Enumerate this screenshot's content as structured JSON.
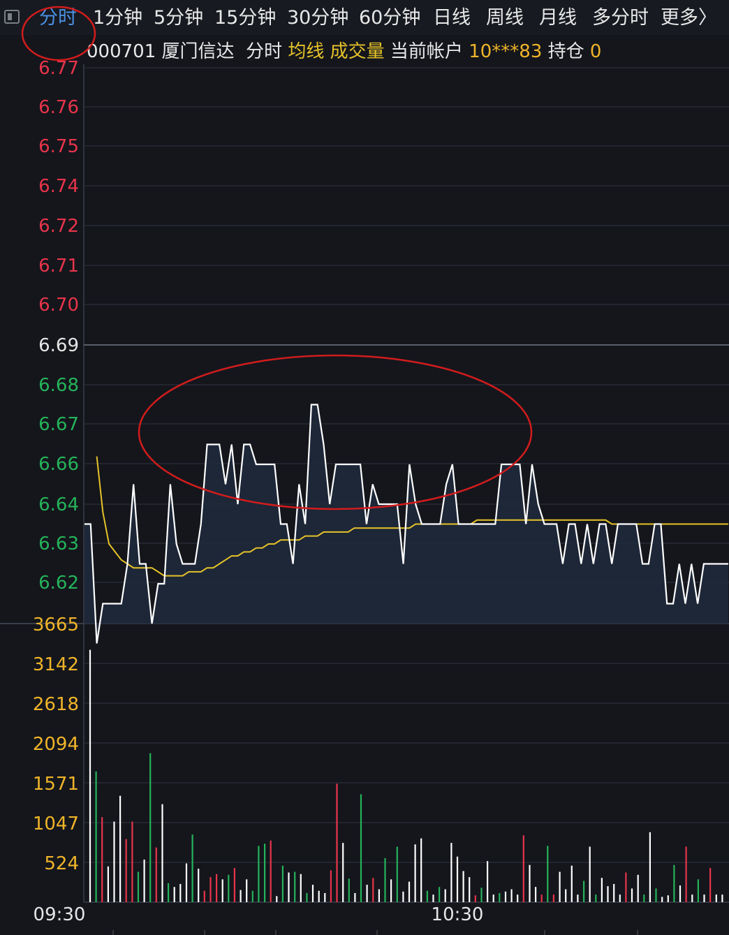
{
  "tabs": [
    {
      "label": "分时",
      "active": true
    },
    {
      "label": "1分钟"
    },
    {
      "label": "5分钟"
    },
    {
      "label": "15分钟"
    },
    {
      "label": "30分钟"
    },
    {
      "label": "60分钟"
    },
    {
      "label": "日线"
    },
    {
      "label": "周线"
    },
    {
      "label": "月线"
    },
    {
      "label": "多分时"
    },
    {
      "label": "更多〉"
    }
  ],
  "info": {
    "code_name": "000701 厦门信达",
    "mode": "分时",
    "avg_label": "均线",
    "volume_label": "成交量",
    "account_label": "当前帐户",
    "account": "10***83",
    "position_label": "持仓",
    "position": "0"
  },
  "colors": {
    "up": "#e8344a",
    "down": "#25b35a",
    "flat": "#ffffff",
    "avg_line": "#e6c229",
    "annotation": "#d21c1c",
    "active_tab": "#4a90e2"
  },
  "chart_data": {
    "type": "line",
    "price_axis": {
      "ticks": [
        "6.77",
        "6.76",
        "6.75",
        "6.74",
        "6.72",
        "6.71",
        "6.70",
        "6.69",
        "6.68",
        "6.67",
        "6.66",
        "6.64",
        "6.63",
        "6.62"
      ],
      "prev_close": "6.69",
      "range": [
        6.615,
        6.77
      ]
    },
    "volume_axis": {
      "ticks": [
        "3665",
        "3142",
        "2618",
        "2094",
        "1571",
        "1047",
        "524"
      ],
      "range": [
        0,
        3665
      ]
    },
    "x_labels": [
      "09:30",
      "10:30"
    ],
    "price": [
      6.645,
      6.645,
      6.615,
      6.625,
      6.625,
      6.625,
      6.625,
      6.635,
      6.655,
      6.635,
      6.635,
      6.62,
      6.63,
      6.63,
      6.655,
      6.64,
      6.635,
      6.635,
      6.635,
      6.645,
      6.665,
      6.665,
      6.665,
      6.655,
      6.665,
      6.65,
      6.665,
      6.665,
      6.66,
      6.66,
      6.66,
      6.66,
      6.645,
      6.645,
      6.635,
      6.655,
      6.645,
      6.675,
      6.675,
      6.665,
      6.65,
      6.66,
      6.66,
      6.66,
      6.66,
      6.66,
      6.645,
      6.655,
      6.65,
      6.65,
      6.65,
      6.65,
      6.635,
      6.66,
      6.65,
      6.645,
      6.645,
      6.645,
      6.645,
      6.655,
      6.66,
      6.645,
      6.645,
      6.645,
      6.645,
      6.645,
      6.645,
      6.645,
      6.66,
      6.66,
      6.66,
      6.66,
      6.645,
      6.66,
      6.65,
      6.645,
      6.645,
      6.645,
      6.635,
      6.645,
      6.645,
      6.635,
      6.645,
      6.635,
      6.645,
      6.645,
      6.635,
      6.645,
      6.645,
      6.645,
      6.645,
      6.635,
      6.635,
      6.645,
      6.645,
      6.625,
      6.625,
      6.635,
      6.625,
      6.635,
      6.625,
      6.635,
      6.635,
      6.635,
      6.635,
      6.635
    ],
    "avg": [
      6.662,
      6.648,
      6.64,
      6.638,
      6.636,
      6.635,
      6.634,
      6.634,
      6.634,
      6.634,
      6.633,
      6.632,
      6.632,
      6.632,
      6.632,
      6.633,
      6.633,
      6.633,
      6.634,
      6.634,
      6.635,
      6.636,
      6.637,
      6.637,
      6.638,
      6.638,
      6.639,
      6.639,
      6.64,
      6.64,
      6.641,
      6.641,
      6.641,
      6.641,
      6.642,
      6.642,
      6.642,
      6.643,
      6.643,
      6.643,
      6.643,
      6.643,
      6.644,
      6.644,
      6.644,
      6.644,
      6.644,
      6.644,
      6.644,
      6.644,
      6.644,
      6.644,
      6.645,
      6.645,
      6.645,
      6.645,
      6.645,
      6.645,
      6.645,
      6.645,
      6.645,
      6.645,
      6.646,
      6.646,
      6.646,
      6.646,
      6.646,
      6.646,
      6.646,
      6.646,
      6.646,
      6.646,
      6.646,
      6.646,
      6.646,
      6.646,
      6.646,
      6.646,
      6.646,
      6.646,
      6.646,
      6.646,
      6.646,
      6.646,
      6.645,
      6.645,
      6.645,
      6.645,
      6.645,
      6.645,
      6.645,
      6.645,
      6.645,
      6.645,
      6.645,
      6.645,
      6.645,
      6.645,
      6.645,
      6.645,
      6.645,
      6.645,
      6.645,
      6.645,
      6.645,
      6.645
    ],
    "volume": [
      3320,
      1720,
      1120,
      470,
      1060,
      1400,
      830,
      1060,
      400,
      560,
      1960,
      720,
      1290,
      250,
      200,
      240,
      510,
      890,
      440,
      150,
      330,
      370,
      300,
      360,
      450,
      160,
      300,
      150,
      740,
      770,
      810,
      80,
      480,
      390,
      400,
      370,
      120,
      230,
      150,
      120,
      420,
      1560,
      780,
      310,
      120,
      1420,
      230,
      320,
      170,
      580,
      300,
      730,
      140,
      270,
      760,
      840,
      150,
      100,
      200,
      170,
      780,
      600,
      410,
      330,
      90,
      190,
      540,
      100,
      120,
      140,
      170,
      100,
      880,
      490,
      200,
      100,
      740,
      100,
      400,
      170,
      480,
      100,
      280,
      730,
      100,
      320,
      210,
      240,
      100,
      390,
      180,
      360,
      100,
      920,
      180,
      70,
      90,
      490,
      220,
      730,
      100,
      300,
      100,
      450,
      100,
      100
    ],
    "volume_dir": [
      "w",
      "g",
      "r",
      "w",
      "w",
      "w",
      "r",
      "r",
      "g",
      "w",
      "g",
      "r",
      "w",
      "g",
      "w",
      "w",
      "w",
      "g",
      "w",
      "r",
      "r",
      "r",
      "w",
      "g",
      "r",
      "w",
      "w",
      "g",
      "g",
      "g",
      "r",
      "w",
      "g",
      "w",
      "g",
      "w",
      "g",
      "w",
      "w",
      "w",
      "r",
      "r",
      "w",
      "g",
      "w",
      "g",
      "w",
      "r",
      "w",
      "g",
      "w",
      "g",
      "w",
      "w",
      "w",
      "w",
      "g",
      "w",
      "g",
      "w",
      "w",
      "w",
      "w",
      "w",
      "r",
      "g",
      "w",
      "w",
      "g",
      "w",
      "w",
      "w",
      "r",
      "w",
      "w",
      "r",
      "g",
      "r",
      "w",
      "w",
      "w",
      "w",
      "g",
      "w",
      "g",
      "w",
      "w",
      "w",
      "w",
      "r",
      "w",
      "w",
      "g",
      "w",
      "g",
      "w",
      "w",
      "g",
      "w",
      "r",
      "w",
      "g",
      "w",
      "r",
      "w",
      "w"
    ]
  },
  "annotations": [
    {
      "shape": "ellipse",
      "label": "tab-highlight"
    },
    {
      "shape": "ellipse",
      "label": "price-highlight"
    }
  ]
}
